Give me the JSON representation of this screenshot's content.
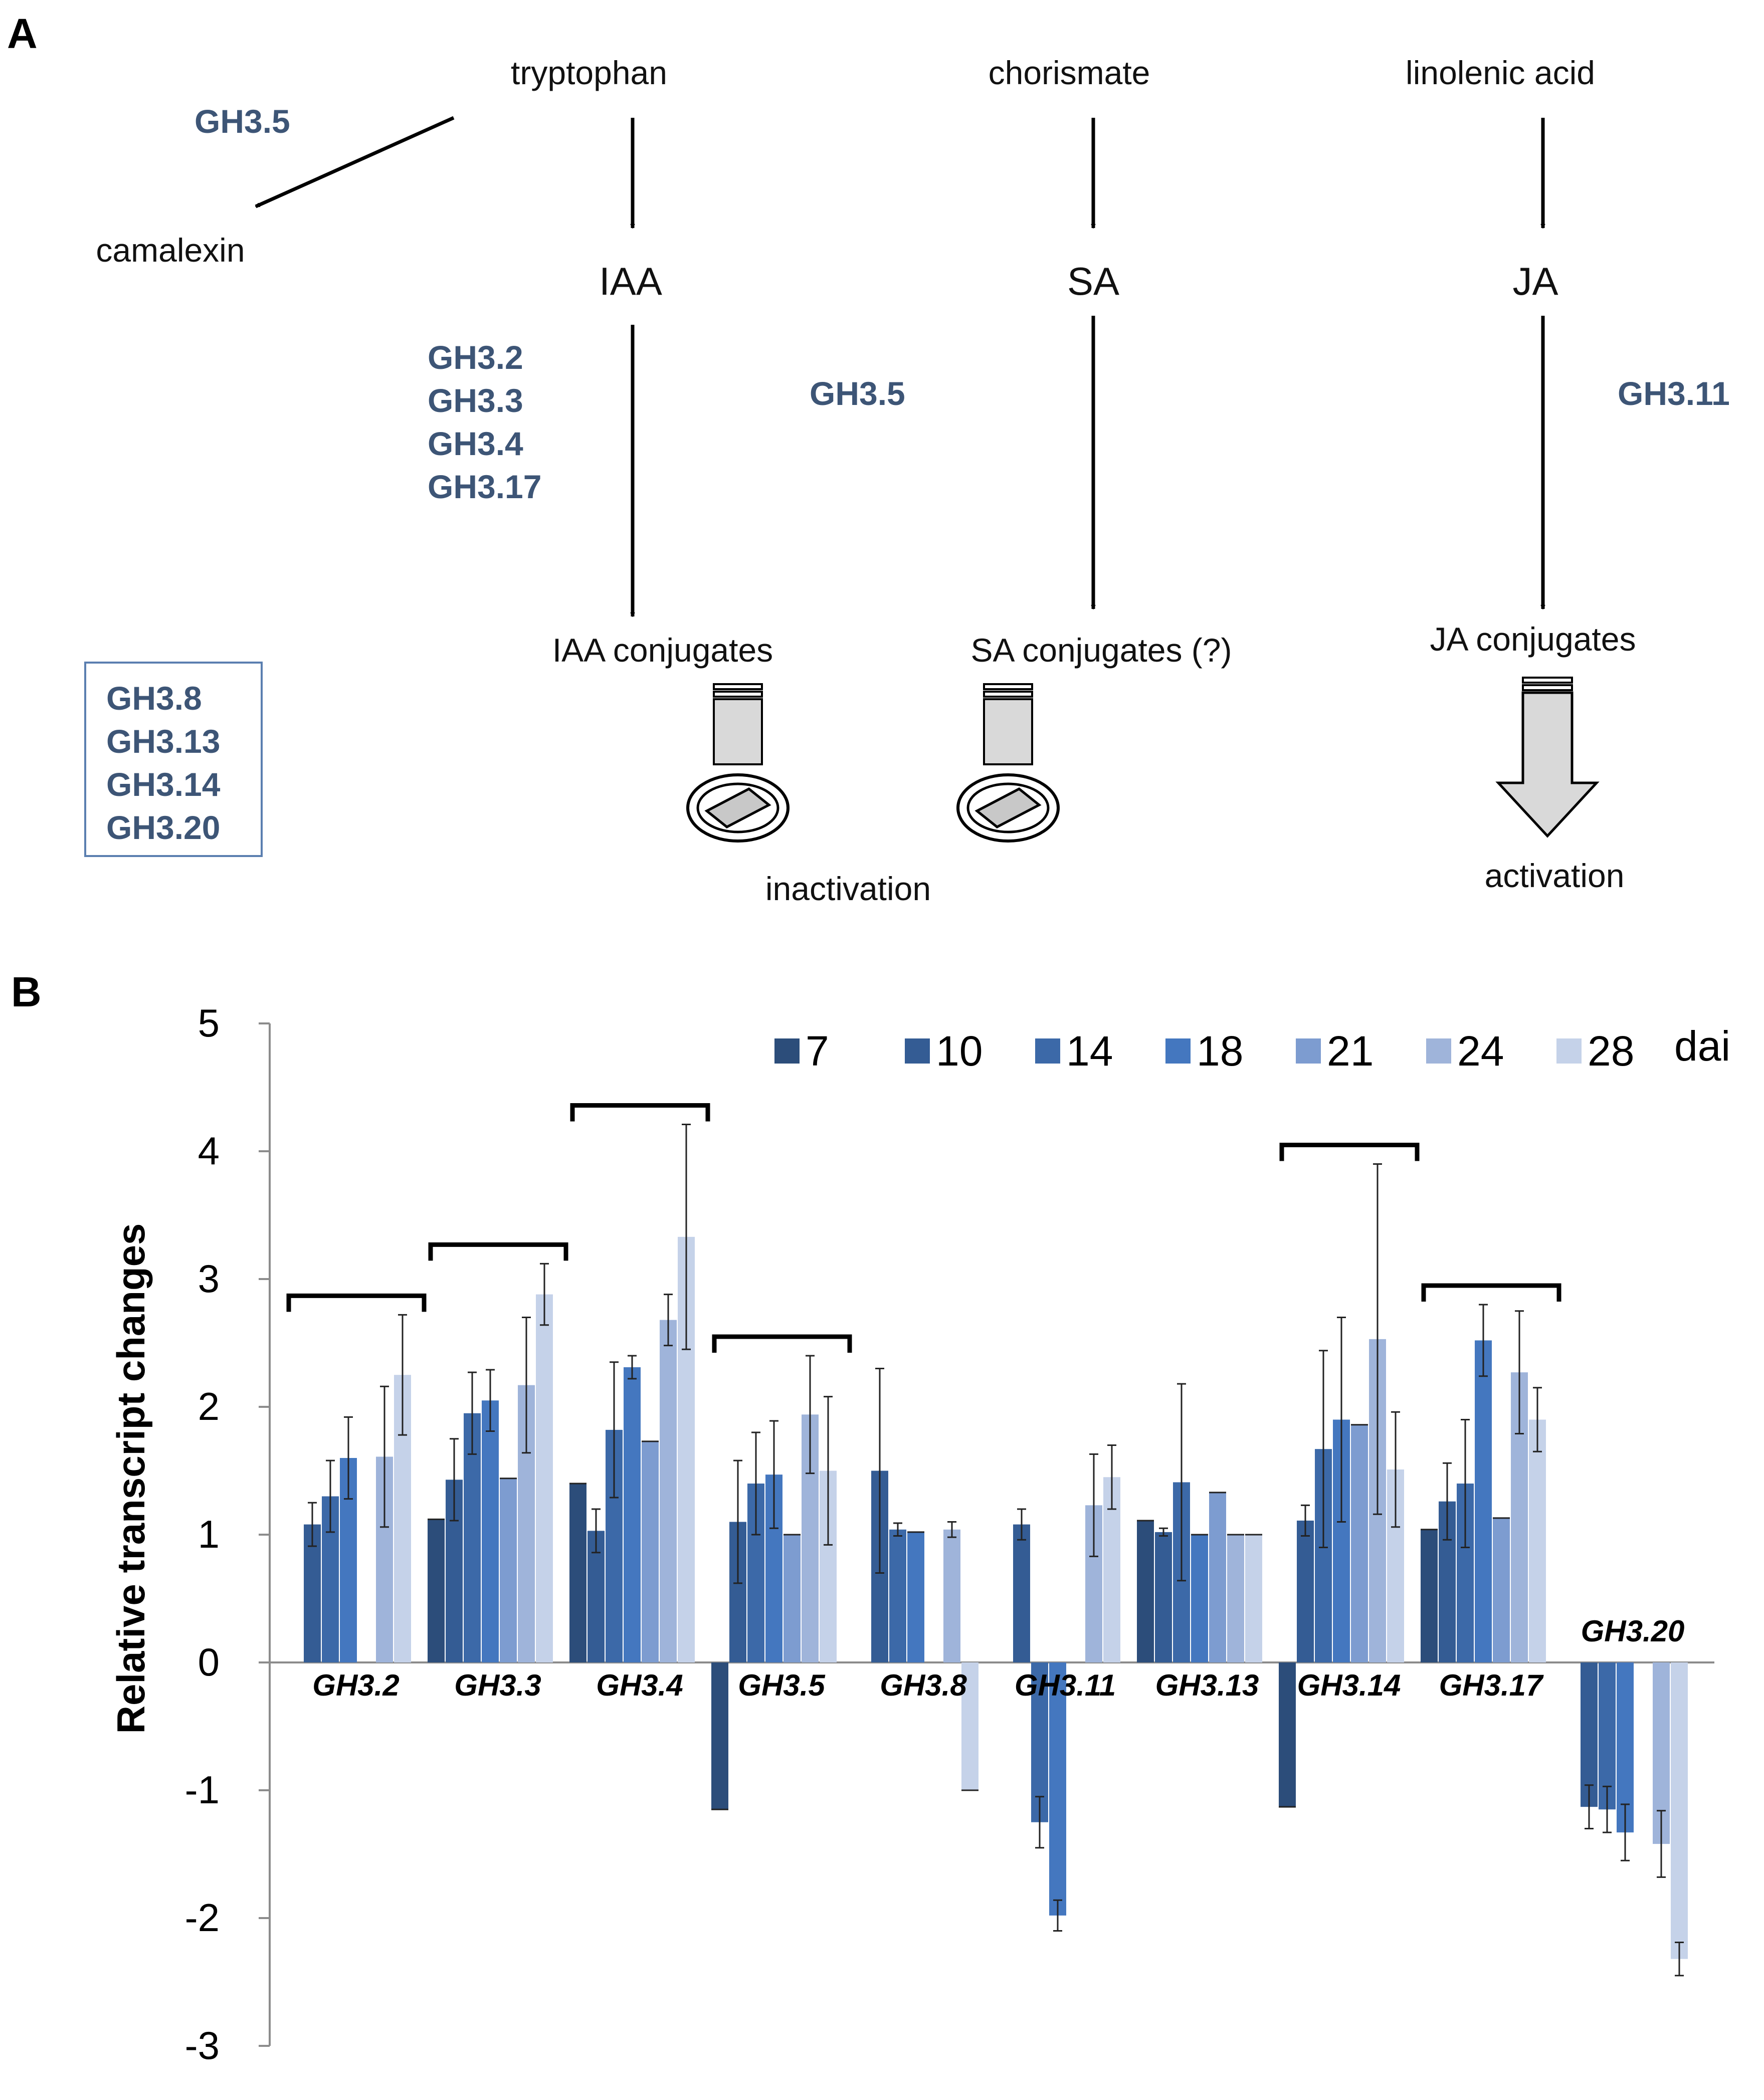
{
  "panel_a": {
    "label": "A",
    "gene_color": "#3d5576",
    "metabolites": {
      "tryptophan": "tryptophan",
      "chorismate": "chorismate",
      "linolenic": "linolenic acid",
      "camalexin": "camalexin",
      "iaa": "IAA",
      "sa": "SA",
      "ja": "JA",
      "iaa_conj": "IAA conjugates",
      "sa_conj": "SA conjugates (?)",
      "ja_conj": "JA conjugates"
    },
    "genes": {
      "camalexin_gene": "GH3.5",
      "iaa_genes": [
        "GH3.2",
        "GH3.3",
        "GH3.4",
        "GH3.17"
      ],
      "sa_gene": "GH3.5",
      "ja_gene": "GH3.11",
      "boxed_genes": [
        "GH3.8",
        "GH3.13",
        "GH3.14",
        "GH3.20"
      ]
    },
    "outcomes": {
      "inactivation": "inactivation",
      "activation": "activation"
    }
  },
  "chart_data": {
    "panel_label": "B",
    "type": "bar",
    "title": "",
    "xlabel": "",
    "ylabel": "Relative transcript changes",
    "ylim": [
      -3,
      5
    ],
    "yticks": [
      5,
      4,
      3,
      2,
      1,
      0,
      -1,
      -2,
      -3
    ],
    "legend_suffix": "dai",
    "legend_position": "top-right",
    "categories": [
      "GH3.2",
      "GH3.3",
      "GH3.4",
      "GH3.5",
      "GH3.8",
      "GH3.11",
      "GH3.13",
      "GH3.14",
      "GH3.17",
      "GH3.20"
    ],
    "series": [
      {
        "name": "7",
        "color": "#2c4d7a",
        "values": [
          null,
          1.12,
          1.4,
          -1.15,
          null,
          null,
          1.11,
          -1.13,
          1.04,
          null
        ],
        "errors": [
          null,
          null,
          null,
          null,
          null,
          null,
          null,
          null,
          null,
          null
        ]
      },
      {
        "name": "10",
        "color": "#345c94",
        "values": [
          1.08,
          1.43,
          1.03,
          1.1,
          1.5,
          1.08,
          1.02,
          1.11,
          1.26,
          -1.13
        ],
        "errors": [
          0.17,
          0.32,
          0.17,
          0.48,
          0.8,
          0.12,
          0.03,
          0.12,
          0.3,
          0.17
        ]
      },
      {
        "name": "14",
        "color": "#3c69a8",
        "values": [
          1.3,
          1.95,
          1.82,
          1.4,
          1.04,
          -1.25,
          1.41,
          1.67,
          1.4,
          -1.15
        ],
        "errors": [
          0.28,
          0.32,
          0.53,
          0.4,
          0.05,
          0.2,
          0.77,
          0.77,
          0.5,
          0.18
        ]
      },
      {
        "name": "18",
        "color": "#4477bf",
        "values": [
          1.6,
          2.05,
          2.31,
          1.47,
          1.02,
          -1.98,
          1.0,
          1.9,
          2.52,
          -1.33
        ],
        "errors": [
          0.32,
          0.24,
          0.09,
          0.42,
          null,
          0.12,
          null,
          0.8,
          0.28,
          0.22
        ]
      },
      {
        "name": "21",
        "color": "#7d9cd0",
        "values": [
          null,
          1.44,
          1.73,
          1.0,
          null,
          null,
          1.33,
          1.86,
          1.13,
          null
        ],
        "errors": [
          null,
          null,
          null,
          null,
          null,
          null,
          null,
          null,
          null,
          null
        ]
      },
      {
        "name": "24",
        "color": "#9fb4da",
        "values": [
          1.61,
          2.17,
          2.68,
          1.94,
          1.04,
          1.23,
          1.0,
          2.53,
          2.27,
          -1.42
        ],
        "errors": [
          0.55,
          0.53,
          0.2,
          0.46,
          0.06,
          0.4,
          null,
          1.37,
          0.48,
          0.26
        ]
      },
      {
        "name": "28",
        "color": "#c5d2e9",
        "values": [
          2.25,
          2.88,
          3.33,
          1.5,
          -1.0,
          1.45,
          1.0,
          1.51,
          1.9,
          -2.32
        ],
        "errors": [
          0.47,
          0.24,
          0.88,
          0.58,
          null,
          0.25,
          null,
          0.45,
          0.25,
          0.13
        ]
      }
    ],
    "brackets": [
      "GH3.2",
      "GH3.3",
      "GH3.4",
      "GH3.5",
      "GH3.14",
      "GH3.17"
    ]
  }
}
